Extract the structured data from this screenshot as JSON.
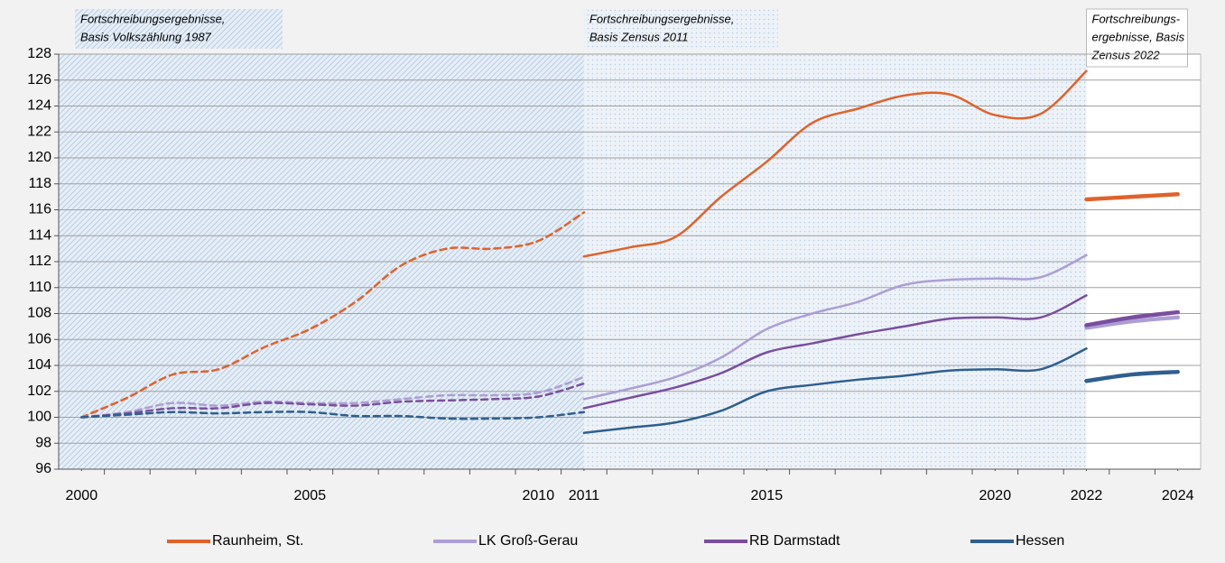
{
  "chart_data": {
    "type": "line",
    "xlim": [
      1999.5,
      2024.5
    ],
    "xticks": [
      2000,
      2005,
      2010,
      2011,
      2015,
      2020,
      2022,
      2024
    ],
    "ylim": [
      96,
      128
    ],
    "yticks": [
      96,
      98,
      100,
      102,
      104,
      106,
      108,
      110,
      112,
      114,
      116,
      118,
      120,
      122,
      124,
      126,
      128
    ],
    "grid": true,
    "legend": "bottom",
    "periods": [
      {
        "label": [
          "Fortschreibungsergebnisse,",
          "Basis Volkszählung 1987"
        ],
        "from": 1999.5,
        "to": 2011,
        "pattern": "hatch"
      },
      {
        "label": [
          "Fortschreibungsergebnisse,",
          "Basis Zensus 2011"
        ],
        "from": 2011,
        "to": 2022,
        "pattern": "dots"
      },
      {
        "label": [
          "Fortschreibungs-",
          "ergebnisse, Basis",
          "Zensus 2022"
        ],
        "from": 2022,
        "to": 2024.5,
        "pattern": "none"
      }
    ],
    "series": [
      {
        "name": "Raunheim, St.",
        "color": "#e0622a",
        "segments": [
          {
            "style": "dashed",
            "x": [
              2000,
              2001,
              2002,
              2003,
              2004,
              2005,
              2006,
              2007,
              2008,
              2009,
              2010,
              2011
            ],
            "values": [
              100,
              101.5,
              103.3,
              103.7,
              105.4,
              106.8,
              108.9,
              111.7,
              113.0,
              113.0,
              113.6,
              115.8
            ]
          },
          {
            "style": "solid",
            "x": [
              2011,
              2012,
              2013,
              2014,
              2015,
              2016,
              2017,
              2018,
              2019,
              2020,
              2021,
              2022
            ],
            "values": [
              112.4,
              113.1,
              113.9,
              117.0,
              119.7,
              122.7,
              123.8,
              124.8,
              124.9,
              123.3,
              123.4,
              126.7
            ]
          },
          {
            "style": "thick",
            "x": [
              2022,
              2023,
              2024
            ],
            "values": [
              116.8,
              117.0,
              117.2
            ]
          }
        ]
      },
      {
        "name": "LK Groß-Gerau",
        "color": "#ad9ed4",
        "segments": [
          {
            "style": "dashed",
            "x": [
              2000,
              2001,
              2002,
              2003,
              2004,
              2005,
              2006,
              2007,
              2008,
              2009,
              2010,
              2011
            ],
            "values": [
              100,
              100.4,
              101.1,
              100.9,
              101.2,
              101.1,
              101.1,
              101.4,
              101.7,
              101.7,
              101.9,
              103.1
            ]
          },
          {
            "style": "solid",
            "x": [
              2011,
              2012,
              2013,
              2014,
              2015,
              2016,
              2017,
              2018,
              2019,
              2020,
              2021,
              2022
            ],
            "values": [
              101.4,
              102.2,
              103.1,
              104.6,
              106.8,
              108.0,
              108.9,
              110.2,
              110.6,
              110.7,
              110.8,
              112.5
            ]
          },
          {
            "style": "thick",
            "x": [
              2022,
              2023,
              2024
            ],
            "values": [
              106.9,
              107.4,
              107.7
            ]
          }
        ]
      },
      {
        "name": "RB Darmstadt",
        "color": "#7a4e9e",
        "segments": [
          {
            "style": "dashed",
            "x": [
              2000,
              2001,
              2002,
              2003,
              2004,
              2005,
              2006,
              2007,
              2008,
              2009,
              2010,
              2011
            ],
            "values": [
              100,
              100.3,
              100.7,
              100.7,
              101.1,
              101.0,
              100.9,
              101.2,
              101.3,
              101.4,
              101.6,
              102.6
            ]
          },
          {
            "style": "solid",
            "x": [
              2011,
              2012,
              2013,
              2014,
              2015,
              2016,
              2017,
              2018,
              2019,
              2020,
              2021,
              2022
            ],
            "values": [
              100.7,
              101.5,
              102.3,
              103.4,
              105.0,
              105.7,
              106.4,
              107.0,
              107.6,
              107.7,
              107.7,
              109.4
            ]
          },
          {
            "style": "thick",
            "x": [
              2022,
              2023,
              2024
            ],
            "values": [
              107.1,
              107.7,
              108.1
            ]
          }
        ]
      },
      {
        "name": "Hessen",
        "color": "#2f5f8f",
        "segments": [
          {
            "style": "dashed",
            "x": [
              2000,
              2001,
              2002,
              2003,
              2004,
              2005,
              2006,
              2007,
              2008,
              2009,
              2010,
              2011
            ],
            "values": [
              100,
              100.2,
              100.4,
              100.3,
              100.4,
              100.4,
              100.1,
              100.1,
              99.9,
              99.9,
              100.0,
              100.4
            ]
          },
          {
            "style": "solid",
            "x": [
              2011,
              2012,
              2013,
              2014,
              2015,
              2016,
              2017,
              2018,
              2019,
              2020,
              2021,
              2022
            ],
            "values": [
              98.8,
              99.2,
              99.6,
              100.5,
              102.0,
              102.5,
              102.9,
              103.2,
              103.6,
              103.7,
              103.7,
              105.3
            ]
          },
          {
            "style": "thick",
            "x": [
              2022,
              2023,
              2024
            ],
            "values": [
              102.8,
              103.3,
              103.5
            ]
          }
        ]
      }
    ]
  }
}
